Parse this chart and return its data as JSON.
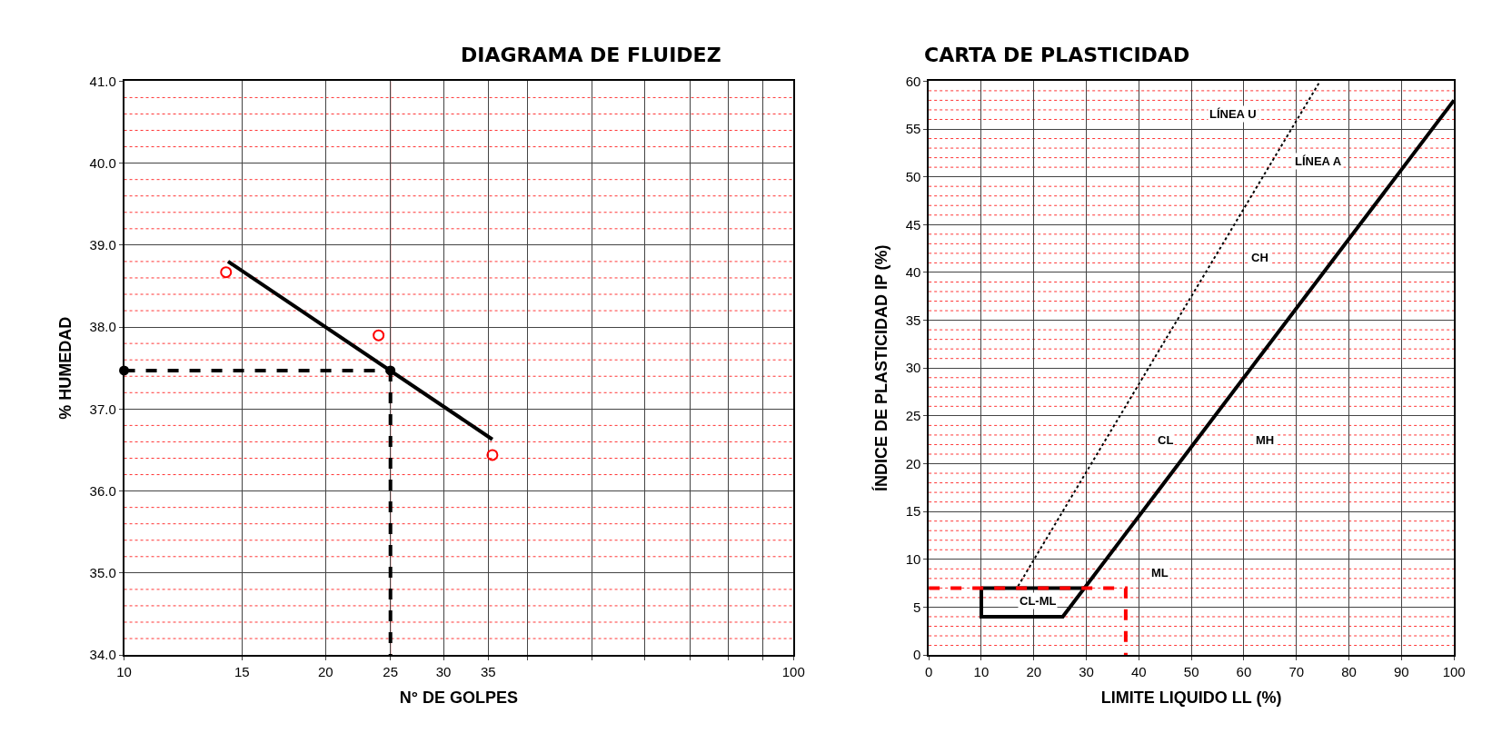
{
  "chart_data": [
    {
      "type": "scatter",
      "title": "DIAGRAMA DE FLUIDEZ",
      "xlabel": "N° DE GOLPES",
      "ylabel": "% HUMEDAD",
      "log": "x",
      "xlim": [
        10,
        100
      ],
      "xticks": [
        10,
        15,
        20,
        25,
        30,
        35,
        {
          "value": 40,
          "label": null
        },
        {
          "value": 50,
          "label": null
        },
        {
          "value": 60,
          "label": null
        },
        {
          "value": 70,
          "label": null
        },
        {
          "value": 80,
          "label": null
        },
        {
          "value": 90,
          "label": null
        },
        100
      ],
      "ylim": [
        34.0,
        41.0
      ],
      "yticks": [
        {
          "value": 34,
          "label": "34.0"
        },
        {
          "value": 35,
          "label": "35.0"
        },
        {
          "value": 36,
          "label": "36.0"
        },
        {
          "value": 37,
          "label": "37.0"
        },
        {
          "value": 38,
          "label": "38.0"
        },
        {
          "value": 39,
          "label": "39.0"
        },
        {
          "value": 40,
          "label": "40.0"
        },
        {
          "value": 41,
          "label": "41.0"
        }
      ],
      "grid": true,
      "ref_lines": [
        {
          "axis": "x",
          "value": 25,
          "color": "#ff0000",
          "line_style": "solid"
        },
        {
          "axis": "y",
          "value": 34.2,
          "color": "#ff0000",
          "line_style": "dotted"
        },
        {
          "axis": "y",
          "value": 34.4,
          "color": "#ff0000",
          "line_style": "dotted"
        },
        {
          "axis": "y",
          "value": 34.6,
          "color": "#ff0000",
          "line_style": "dotted"
        },
        {
          "axis": "y",
          "value": 34.8,
          "color": "#ff0000",
          "line_style": "dotted"
        },
        {
          "axis": "y",
          "value": 35.2,
          "color": "#ff0000",
          "line_style": "dotted"
        },
        {
          "axis": "y",
          "value": 35.4,
          "color": "#ff0000",
          "line_style": "dotted"
        },
        {
          "axis": "y",
          "value": 35.6,
          "color": "#ff0000",
          "line_style": "dotted"
        },
        {
          "axis": "y",
          "value": 35.8,
          "color": "#ff0000",
          "line_style": "dotted"
        },
        {
          "axis": "y",
          "value": 36.2,
          "color": "#ff0000",
          "line_style": "dotted"
        },
        {
          "axis": "y",
          "value": 36.4,
          "color": "#ff0000",
          "line_style": "dotted"
        },
        {
          "axis": "y",
          "value": 36.6,
          "color": "#ff0000",
          "line_style": "dotted"
        },
        {
          "axis": "y",
          "value": 36.8,
          "color": "#ff0000",
          "line_style": "dotted"
        },
        {
          "axis": "y",
          "value": 37.2,
          "color": "#ff0000",
          "line_style": "dotted"
        },
        {
          "axis": "y",
          "value": 37.4,
          "color": "#ff0000",
          "line_style": "dotted"
        },
        {
          "axis": "y",
          "value": 37.6,
          "color": "#ff0000",
          "line_style": "dotted"
        },
        {
          "axis": "y",
          "value": 37.8,
          "color": "#ff0000",
          "line_style": "dotted"
        },
        {
          "axis": "y",
          "value": 38.2,
          "color": "#ff0000",
          "line_style": "dotted"
        },
        {
          "axis": "y",
          "value": 38.4,
          "color": "#ff0000",
          "line_style": "dotted"
        },
        {
          "axis": "y",
          "value": 38.6,
          "color": "#ff0000",
          "line_style": "dotted"
        },
        {
          "axis": "y",
          "value": 38.8,
          "color": "#ff0000",
          "line_style": "dotted"
        },
        {
          "axis": "y",
          "value": 39.2,
          "color": "#ff0000",
          "line_style": "dotted"
        },
        {
          "axis": "y",
          "value": 39.4,
          "color": "#ff0000",
          "line_style": "dotted"
        },
        {
          "axis": "y",
          "value": 39.6,
          "color": "#ff0000",
          "line_style": "dotted"
        },
        {
          "axis": "y",
          "value": 39.8,
          "color": "#ff0000",
          "line_style": "dotted"
        },
        {
          "axis": "y",
          "value": 40.2,
          "color": "#ff0000",
          "line_style": "dotted"
        },
        {
          "axis": "y",
          "value": 40.4,
          "color": "#ff0000",
          "line_style": "dotted"
        },
        {
          "axis": "y",
          "value": 40.6,
          "color": "#ff0000",
          "line_style": "dotted"
        },
        {
          "axis": "y",
          "value": 40.8,
          "color": "#ff0000",
          "line_style": "dotted"
        }
      ],
      "series": [
        {
          "type": "scatter",
          "color": "#ff0000",
          "marker": "circle",
          "x": [
            14.2,
            24,
            35.5
          ],
          "values": [
            38.67,
            37.9,
            36.44
          ]
        },
        {
          "type": "line",
          "color": "#000000",
          "line_style": "solid",
          "x": [
            14.3,
            35.5
          ],
          "values": [
            38.8,
            36.63
          ]
        },
        {
          "type": "line",
          "color": "#000000",
          "line_style": "dashed",
          "marker": "circle",
          "x": [
            10,
            25
          ],
          "values": [
            37.47,
            37.47
          ]
        },
        {
          "type": "line",
          "color": "#000000",
          "line_style": "dashed",
          "x": [
            25,
            25
          ],
          "values": [
            37.47,
            34.0
          ]
        }
      ]
    },
    {
      "type": "line",
      "title": "CARTA DE PLASTICIDAD",
      "xlabel": "LIMITE LIQUIDO LL (%)",
      "ylabel": "ÍNDICE DE PLASTICIDAD IP (%)",
      "xlim": [
        0,
        100
      ],
      "xticks": [
        0,
        10,
        20,
        30,
        40,
        50,
        60,
        70,
        80,
        90,
        100
      ],
      "ylim": [
        0,
        60
      ],
      "yticks": [
        0,
        5,
        10,
        15,
        20,
        25,
        30,
        35,
        40,
        45,
        50,
        55,
        60
      ],
      "grid": true,
      "annotations": [
        "LÍNEA U",
        "LÍNEA A",
        "CH",
        "CL",
        "MH",
        "ML",
        "CL-ML"
      ],
      "ref_lines": [
        {
          "axis": "y",
          "value": 1,
          "color": "#ff0000",
          "line_style": "dotted"
        },
        {
          "axis": "y",
          "value": 2,
          "color": "#ff0000",
          "line_style": "dotted"
        },
        {
          "axis": "y",
          "value": 3,
          "color": "#ff0000",
          "line_style": "dotted"
        },
        {
          "axis": "y",
          "value": 4,
          "color": "#ff0000",
          "line_style": "dotted"
        },
        {
          "axis": "y",
          "value": 6,
          "color": "#ff0000",
          "line_style": "dotted"
        },
        {
          "axis": "y",
          "value": 7,
          "color": "#ff0000",
          "line_style": "dotted"
        },
        {
          "axis": "y",
          "value": 8,
          "color": "#ff0000",
          "line_style": "dotted"
        },
        {
          "axis": "y",
          "value": 9,
          "color": "#ff0000",
          "line_style": "dotted"
        },
        {
          "axis": "y",
          "value": 11,
          "color": "#ff0000",
          "line_style": "dotted"
        },
        {
          "axis": "y",
          "value": 12,
          "color": "#ff0000",
          "line_style": "dotted"
        },
        {
          "axis": "y",
          "value": 13,
          "color": "#ff0000",
          "line_style": "dotted"
        },
        {
          "axis": "y",
          "value": 14,
          "color": "#ff0000",
          "line_style": "dotted"
        },
        {
          "axis": "y",
          "value": 16,
          "color": "#ff0000",
          "line_style": "dotted"
        },
        {
          "axis": "y",
          "value": 17,
          "color": "#ff0000",
          "line_style": "dotted"
        },
        {
          "axis": "y",
          "value": 18,
          "color": "#ff0000",
          "line_style": "dotted"
        },
        {
          "axis": "y",
          "value": 19,
          "color": "#ff0000",
          "line_style": "dotted"
        },
        {
          "axis": "y",
          "value": 21,
          "color": "#ff0000",
          "line_style": "dotted"
        },
        {
          "axis": "y",
          "value": 22,
          "color": "#ff0000",
          "line_style": "dotted"
        },
        {
          "axis": "y",
          "value": 23,
          "color": "#ff0000",
          "line_style": "dotted"
        },
        {
          "axis": "y",
          "value": 24,
          "color": "#ff0000",
          "line_style": "dotted"
        },
        {
          "axis": "y",
          "value": 26,
          "color": "#ff0000",
          "line_style": "dotted"
        },
        {
          "axis": "y",
          "value": 27,
          "color": "#ff0000",
          "line_style": "dotted"
        },
        {
          "axis": "y",
          "value": 28,
          "color": "#ff0000",
          "line_style": "dotted"
        },
        {
          "axis": "y",
          "value": 29,
          "color": "#ff0000",
          "line_style": "dotted"
        },
        {
          "axis": "y",
          "value": 31,
          "color": "#ff0000",
          "line_style": "dotted"
        },
        {
          "axis": "y",
          "value": 32,
          "color": "#ff0000",
          "line_style": "dotted"
        },
        {
          "axis": "y",
          "value": 33,
          "color": "#ff0000",
          "line_style": "dotted"
        },
        {
          "axis": "y",
          "value": 34,
          "color": "#ff0000",
          "line_style": "dotted"
        },
        {
          "axis": "y",
          "value": 36,
          "color": "#ff0000",
          "line_style": "dotted"
        },
        {
          "axis": "y",
          "value": 37,
          "color": "#ff0000",
          "line_style": "dotted"
        },
        {
          "axis": "y",
          "value": 38,
          "color": "#ff0000",
          "line_style": "dotted"
        },
        {
          "axis": "y",
          "value": 39,
          "color": "#ff0000",
          "line_style": "dotted"
        },
        {
          "axis": "y",
          "value": 41,
          "color": "#ff0000",
          "line_style": "dotted"
        },
        {
          "axis": "y",
          "value": 42,
          "color": "#ff0000",
          "line_style": "dotted"
        },
        {
          "axis": "y",
          "value": 43,
          "color": "#ff0000",
          "line_style": "dotted"
        },
        {
          "axis": "y",
          "value": 44,
          "color": "#ff0000",
          "line_style": "dotted"
        },
        {
          "axis": "y",
          "value": 46,
          "color": "#ff0000",
          "line_style": "dotted"
        },
        {
          "axis": "y",
          "value": 47,
          "color": "#ff0000",
          "line_style": "dotted"
        },
        {
          "axis": "y",
          "value": 48,
          "color": "#ff0000",
          "line_style": "dotted"
        },
        {
          "axis": "y",
          "value": 49,
          "color": "#ff0000",
          "line_style": "dotted"
        },
        {
          "axis": "y",
          "value": 51,
          "color": "#ff0000",
          "line_style": "dotted"
        },
        {
          "axis": "y",
          "value": 52,
          "color": "#ff0000",
          "line_style": "dotted"
        },
        {
          "axis": "y",
          "value": 53,
          "color": "#ff0000",
          "line_style": "dotted"
        },
        {
          "axis": "y",
          "value": 54,
          "color": "#ff0000",
          "line_style": "dotted"
        },
        {
          "axis": "y",
          "value": 56,
          "color": "#ff0000",
          "line_style": "dotted"
        },
        {
          "axis": "y",
          "value": 57,
          "color": "#ff0000",
          "line_style": "dotted"
        },
        {
          "axis": "y",
          "value": 58,
          "color": "#ff0000",
          "line_style": "dotted"
        },
        {
          "axis": "y",
          "value": 59,
          "color": "#ff0000",
          "line_style": "dotted"
        }
      ],
      "series": [
        {
          "color": "#000000",
          "line_style": "dotted",
          "x": [
            17,
            74.5
          ],
          "values": [
            7.2,
            60
          ]
        },
        {
          "color": "#000000",
          "line_style": "solid",
          "x": [
            10,
            10,
            25.5,
            100
          ],
          "values": [
            7,
            4,
            4,
            58
          ]
        },
        {
          "color": "#000000",
          "line_style": "solid",
          "x": [
            10,
            29.6
          ],
          "values": [
            7,
            7
          ]
        },
        {
          "color": "#ff0000",
          "line_style": "dashed",
          "x": [
            0,
            37.5,
            37.5
          ],
          "values": [
            7,
            7,
            0
          ]
        }
      ]
    }
  ]
}
